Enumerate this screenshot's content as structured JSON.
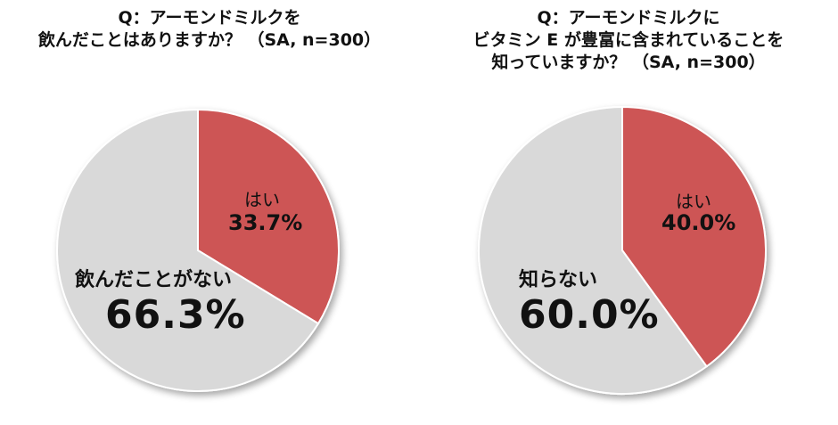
{
  "chart_data": [
    {
      "type": "pie",
      "title": [
        "Q：アーモンドミルクを",
        "飲んだことはありますか？ （SA, n=300）"
      ],
      "slices": [
        {
          "label": "はい",
          "value": 33.7,
          "value_label": "33.7%",
          "color": "#CD5454"
        },
        {
          "label": "飲んだことがない",
          "value": 66.3,
          "value_label": "66.3%",
          "color": "#D9D9D9"
        }
      ]
    },
    {
      "type": "pie",
      "title": [
        "Q：アーモンドミルクに",
        "ビタミン E が豊富に含まれていることを",
        "知っていますか？ （SA, n=300）"
      ],
      "slices": [
        {
          "label": "はい",
          "value": 40.0,
          "value_label": "40.0%",
          "color": "#CD5454"
        },
        {
          "label": "知らない",
          "value": 60.0,
          "value_label": "60.0%",
          "color": "#D9D9D9"
        }
      ]
    }
  ]
}
